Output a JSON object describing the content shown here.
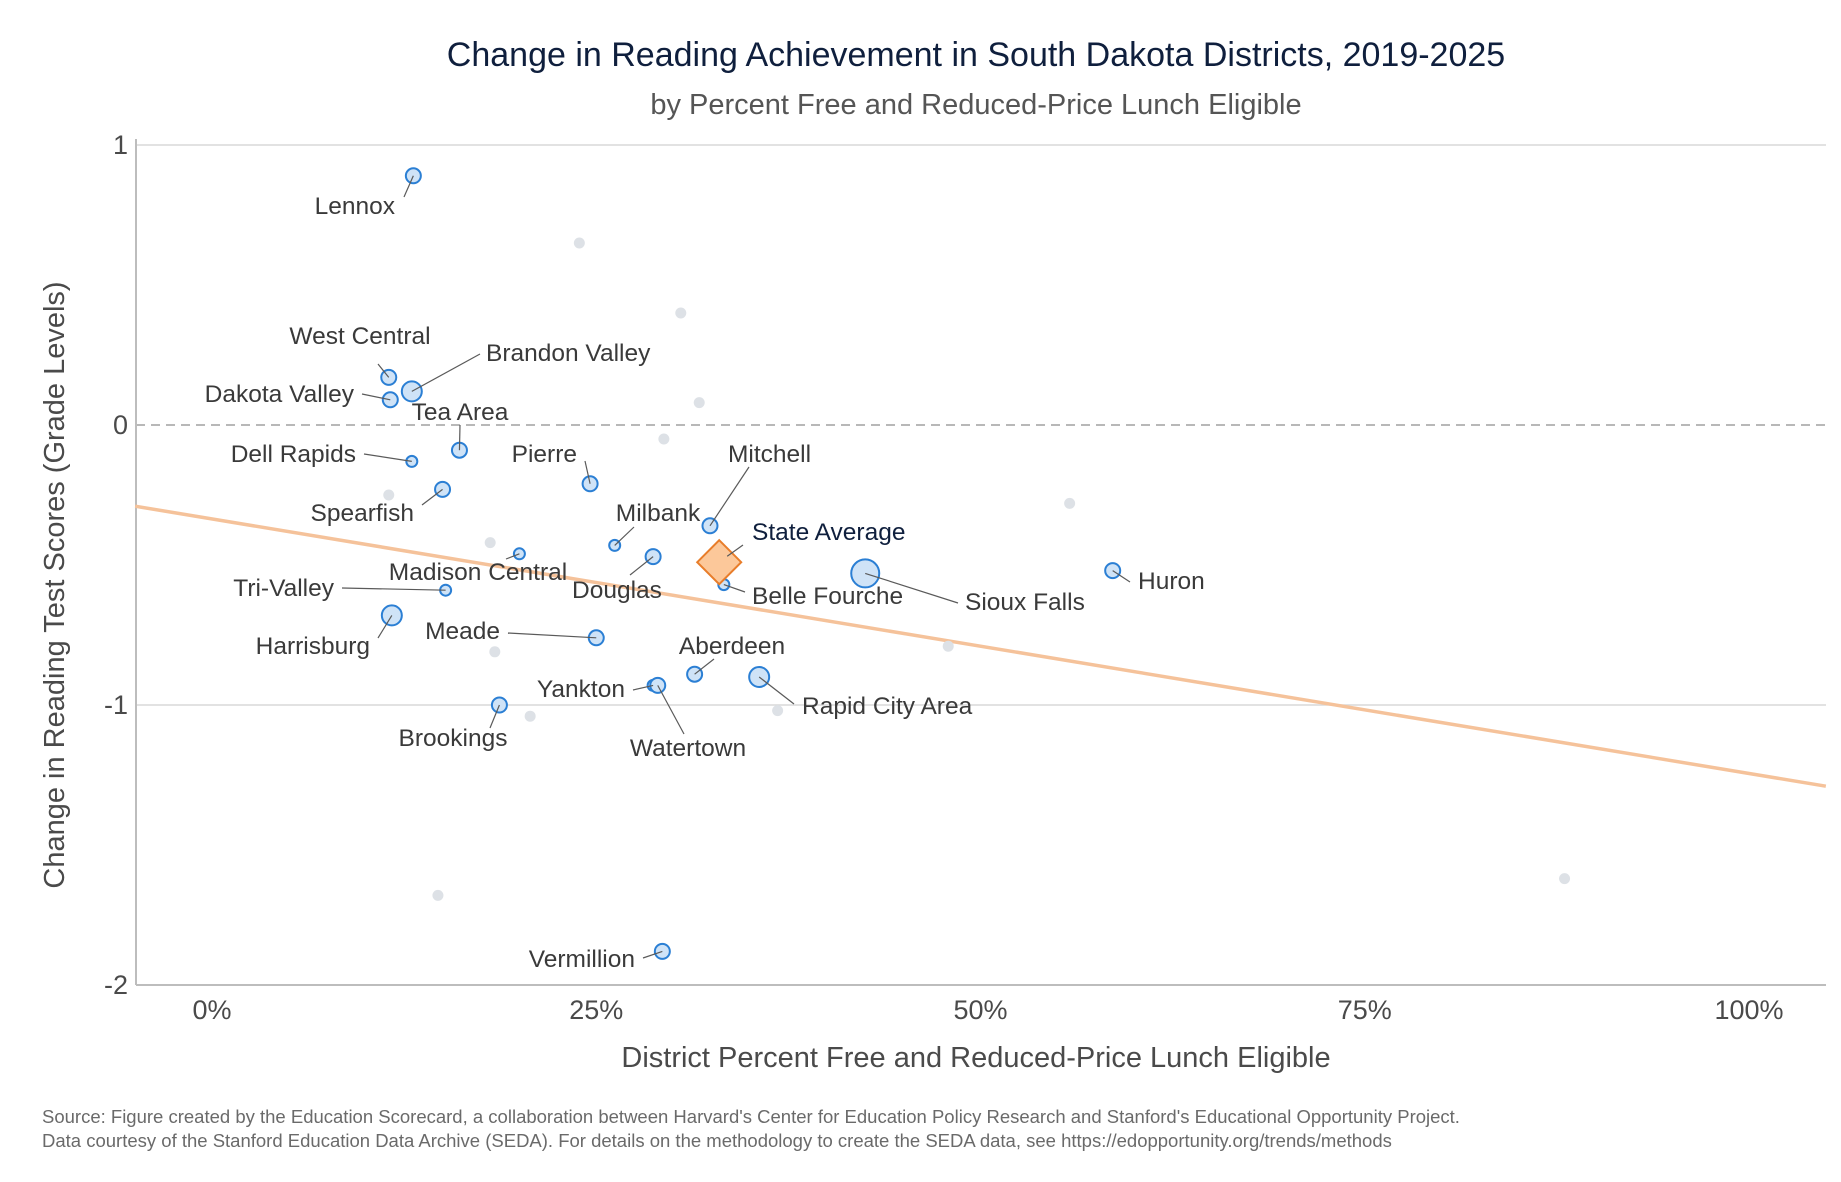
{
  "chart_data": {
    "type": "scatter",
    "title": "Change in Reading Achievement in South Dakota Districts, 2019-2025",
    "subtitle": "by Percent Free and Reduced-Price Lunch Eligible",
    "xlabel": "District Percent Free and Reduced-Price Lunch Eligible",
    "ylabel": "Change in Reading Test Scores (Grade Levels)",
    "xlim": [
      -0.05,
      1.05
    ],
    "ylim": [
      -2.0,
      1.0
    ],
    "x_ticks": [
      {
        "value": 0,
        "label": "0%"
      },
      {
        "value": 0.25,
        "label": "25%"
      },
      {
        "value": 0.5,
        "label": "50%"
      },
      {
        "value": 0.75,
        "label": "75%"
      },
      {
        "value": 1.0,
        "label": "100%"
      }
    ],
    "y_ticks": [
      {
        "value": 1,
        "label": "1"
      },
      {
        "value": 0,
        "label": "0"
      },
      {
        "value": -1,
        "label": "-1"
      },
      {
        "value": -2,
        "label": "-2"
      }
    ],
    "reference_line": {
      "y": 0,
      "style": "dashed"
    },
    "trend_line": {
      "x": [
        -0.05,
        1.05
      ],
      "y": [
        -0.29,
        -1.29
      ],
      "color": "#f5c29a"
    },
    "colors": {
      "labeled_fill": "#cfe3f7",
      "labeled_stroke": "#2b7fd4",
      "unlabeled": "#dde1e6",
      "state_fill": "#fcc89a",
      "state_stroke": "#e87d2a",
      "trend": "#f5c29a",
      "grid": "#d9d9d9"
    },
    "labeled_points": [
      {
        "name": "Lennox",
        "x": 0.131,
        "y": 0.89,
        "size": "small"
      },
      {
        "name": "West Central",
        "x": 0.115,
        "y": 0.17,
        "size": "small"
      },
      {
        "name": "Brandon Valley",
        "x": 0.13,
        "y": 0.12,
        "size": "medium"
      },
      {
        "name": "Dakota Valley",
        "x": 0.116,
        "y": 0.09,
        "size": "small"
      },
      {
        "name": "Tea Area",
        "x": 0.161,
        "y": -0.09,
        "size": "small"
      },
      {
        "name": "Dell Rapids",
        "x": 0.13,
        "y": -0.13,
        "size": "tiny"
      },
      {
        "name": "Pierre",
        "x": 0.246,
        "y": -0.21,
        "size": "small"
      },
      {
        "name": "Spearfish",
        "x": 0.15,
        "y": -0.23,
        "size": "small"
      },
      {
        "name": "Mitchell",
        "x": 0.324,
        "y": -0.36,
        "size": "small"
      },
      {
        "name": "Milbank",
        "x": 0.262,
        "y": -0.43,
        "size": "tiny"
      },
      {
        "name": "Madison Central",
        "x": 0.2,
        "y": -0.46,
        "size": "tiny"
      },
      {
        "name": "Douglas",
        "x": 0.287,
        "y": -0.47,
        "size": "small"
      },
      {
        "name": "Belle Fourche",
        "x": 0.333,
        "y": -0.57,
        "size": "tiny"
      },
      {
        "name": "Sioux Falls",
        "x": 0.425,
        "y": -0.53,
        "size": "large"
      },
      {
        "name": "Huron",
        "x": 0.586,
        "y": -0.52,
        "size": "small"
      },
      {
        "name": "Tri-Valley",
        "x": 0.152,
        "y": -0.59,
        "size": "tiny"
      },
      {
        "name": "Harrisburg",
        "x": 0.117,
        "y": -0.68,
        "size": "medium"
      },
      {
        "name": "Meade",
        "x": 0.25,
        "y": -0.76,
        "size": "small"
      },
      {
        "name": "Aberdeen",
        "x": 0.314,
        "y": -0.89,
        "size": "small"
      },
      {
        "name": "Rapid City Area",
        "x": 0.356,
        "y": -0.9,
        "size": "medium"
      },
      {
        "name": "Yankton",
        "x": 0.287,
        "y": -0.93,
        "size": "tiny"
      },
      {
        "name": "Watertown",
        "x": 0.29,
        "y": -0.93,
        "size": "small"
      },
      {
        "name": "Brookings",
        "x": 0.187,
        "y": -1.0,
        "size": "small"
      },
      {
        "name": "Vermillion",
        "x": 0.293,
        "y": -1.88,
        "size": "small"
      }
    ],
    "state_average": {
      "name": "State Average",
      "x": 0.33,
      "y": -0.49
    },
    "unlabeled_points": [
      {
        "x": 0.239,
        "y": 0.65
      },
      {
        "x": 0.305,
        "y": 0.4
      },
      {
        "x": 0.317,
        "y": 0.08
      },
      {
        "x": 0.294,
        "y": -0.05
      },
      {
        "x": 0.115,
        "y": -0.25
      },
      {
        "x": 0.181,
        "y": -0.42
      },
      {
        "x": 0.558,
        "y": -0.28
      },
      {
        "x": 0.184,
        "y": -0.81
      },
      {
        "x": 0.479,
        "y": -0.79
      },
      {
        "x": 0.207,
        "y": -1.04
      },
      {
        "x": 0.368,
        "y": -1.02
      },
      {
        "x": 0.147,
        "y": -1.68
      },
      {
        "x": 0.88,
        "y": -1.62
      }
    ]
  },
  "source_line1": "Source: Figure created by the Education Scorecard, a collaboration between Harvard's Center for Education Policy Research and Stanford's Educational Opportunity Project.",
  "source_line2": "Data courtesy of the Stanford Education Data Archive (SEDA). For details on the methodology to create the SEDA data, see https://edopportunity.org/trends/methods"
}
